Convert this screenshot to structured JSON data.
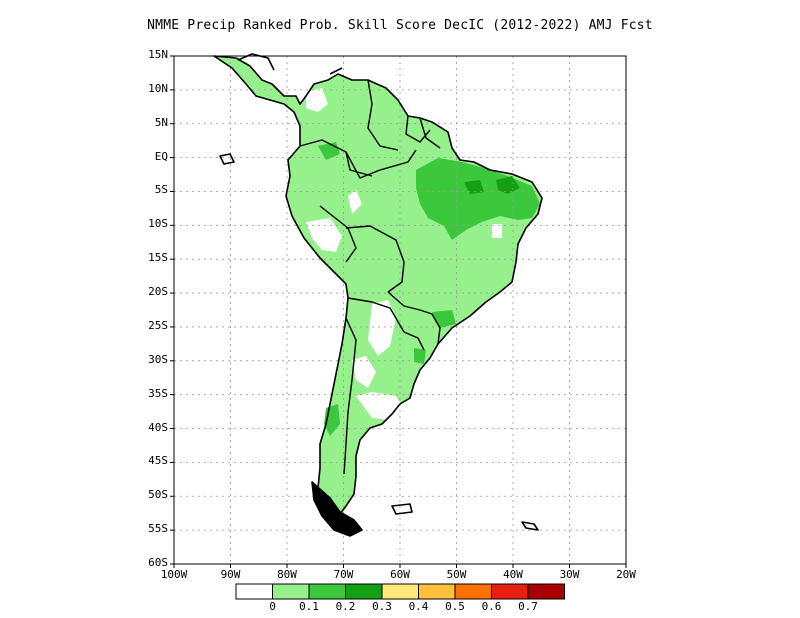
{
  "title": "NMME Precip Ranked Prob. Skill Score DecIC (2012-2022) AMJ Fcst",
  "latitudes": [
    {
      "label": "15N",
      "value": 15
    },
    {
      "label": "10N",
      "value": 10
    },
    {
      "label": "5N",
      "value": 5
    },
    {
      "label": "EQ",
      "value": 0
    },
    {
      "label": "5S",
      "value": -5
    },
    {
      "label": "10S",
      "value": -10
    },
    {
      "label": "15S",
      "value": -15
    },
    {
      "label": "20S",
      "value": -20
    },
    {
      "label": "25S",
      "value": -25
    },
    {
      "label": "30S",
      "value": -30
    },
    {
      "label": "35S",
      "value": -35
    },
    {
      "label": "40S",
      "value": -40
    },
    {
      "label": "45S",
      "value": -45
    },
    {
      "label": "50S",
      "value": -50
    },
    {
      "label": "55S",
      "value": -55
    },
    {
      "label": "60S",
      "value": -60
    }
  ],
  "longitudes": [
    {
      "label": "100W",
      "value": -100
    },
    {
      "label": "90W",
      "value": -90
    },
    {
      "label": "80W",
      "value": -80
    },
    {
      "label": "70W",
      "value": -70
    },
    {
      "label": "60W",
      "value": -60
    },
    {
      "label": "50W",
      "value": -50
    },
    {
      "label": "40W",
      "value": -40
    },
    {
      "label": "30W",
      "value": -30
    },
    {
      "label": "20W",
      "value": -20
    }
  ],
  "colorbar": {
    "colors": [
      "#ffffff",
      "#96f08c",
      "#3cc83c",
      "#14a014",
      "#ffe878",
      "#ffc03c",
      "#ff7000",
      "#e81e0e",
      "#a80000"
    ],
    "labels": [
      "0",
      "0.1",
      "0.2",
      "0.3",
      "0.4",
      "0.5",
      "0.6",
      "0.7"
    ]
  },
  "colors": {
    "light_green": "#96f08c",
    "medium_green": "#3cc83c",
    "dark_green": "#14a014",
    "coast": "#000000",
    "grid": "#9a9a9a"
  }
}
